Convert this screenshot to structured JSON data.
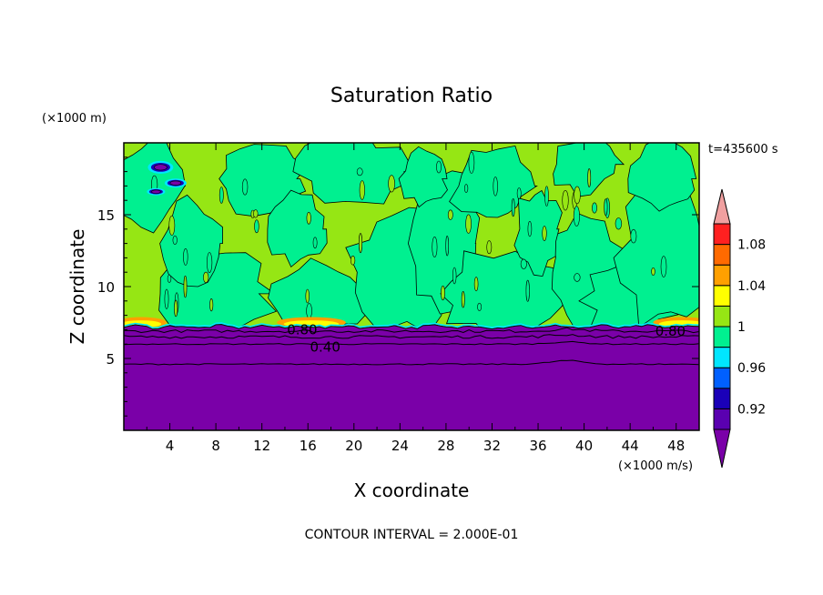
{
  "chart_data": {
    "type": "heatmap",
    "title": "Saturation Ratio",
    "xlabel": "X coordinate",
    "ylabel": "Z coordinate",
    "x_unit": "(×1000 m/s)",
    "y_unit": "(×1000 m)",
    "time_label": "t=435600 s",
    "footer": "CONTOUR INTERVAL = 2.000E-01",
    "xlim": [
      0,
      50
    ],
    "ylim": [
      0,
      20
    ],
    "x_ticks": [
      "4",
      "8",
      "12",
      "16",
      "20",
      "24",
      "28",
      "32",
      "36",
      "40",
      "44",
      "48"
    ],
    "y_ticks": [
      "5",
      "10",
      "15"
    ],
    "colorbar": {
      "levels": [
        0.9,
        0.92,
        0.94,
        0.96,
        0.98,
        1.0,
        1.02,
        1.04,
        1.06,
        1.08,
        1.1
      ],
      "labels": [
        "0.92",
        "0.96",
        "1",
        "1.04",
        "1.08"
      ],
      "colors": [
        "#5a00b0",
        "#1a00b8",
        "#0060ff",
        "#00e6ff",
        "#00f090",
        "#96e614",
        "#ffff00",
        "#ffa000",
        "#ff6a00",
        "#ff2020",
        "#f0a0a0"
      ],
      "extend_low_color": "#7a00a8",
      "extend_high_color": "#f0a0a0"
    },
    "contour_labels": [
      {
        "text": "0.80",
        "x": 15.5,
        "y": 7.0
      },
      {
        "text": "0.40",
        "x": 17.5,
        "y": 5.8
      },
      {
        "text": "0.80",
        "x": 47.5,
        "y": 6.9
      }
    ],
    "regions": {
      "dry_layer_top_km": 7.2,
      "dry_color": "#7a00a8",
      "moist_color_low": "#00f090",
      "moist_color_high": "#96e614",
      "warm_patch_color": "#ffff00"
    }
  }
}
